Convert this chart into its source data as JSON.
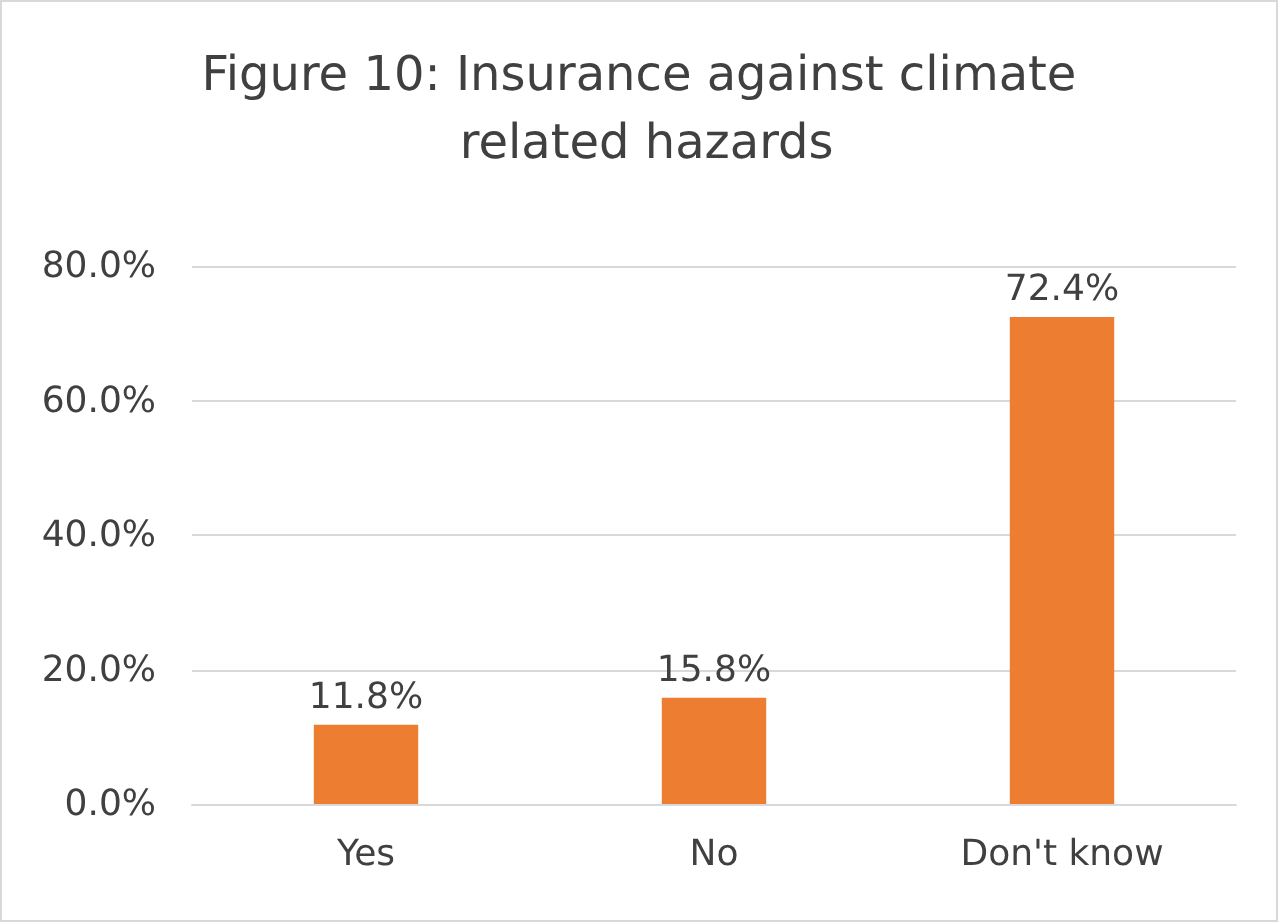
{
  "chart_data": {
    "type": "bar",
    "title": "Figure 10: Insurance against climate related hazards",
    "categories": [
      "Yes",
      "No",
      "Don't know"
    ],
    "values": [
      11.8,
      15.8,
      72.4
    ],
    "value_labels": [
      "11.8%",
      "15.8%",
      "72.4%"
    ],
    "color": "#ed7d31",
    "ylim": [
      0,
      80
    ],
    "yticks": [
      {
        "value": 0,
        "label": "0.0%"
      },
      {
        "value": 20,
        "label": "20.0%"
      },
      {
        "value": 40,
        "label": "40.0%"
      },
      {
        "value": 60,
        "label": "60.0%"
      },
      {
        "value": 80,
        "label": "80.0%"
      }
    ],
    "grid": "y"
  }
}
